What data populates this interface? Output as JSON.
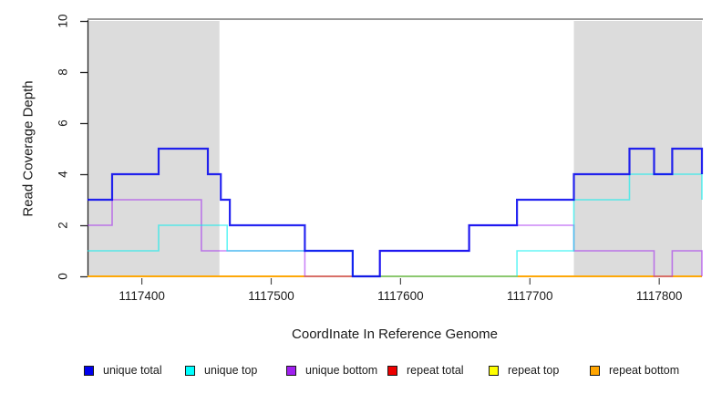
{
  "chart_data": {
    "type": "line",
    "subtype": "step",
    "title": "",
    "xlabel": "CoordInate In Reference Genome",
    "ylabel": "Read Coverage Depth",
    "xlim": [
      1117358,
      1117833
    ],
    "ylim": [
      0,
      10
    ],
    "x_ticks": [
      1117400,
      1117500,
      1117600,
      1117700,
      1117800
    ],
    "y_ticks": [
      0,
      2,
      4,
      6,
      8,
      10
    ],
    "grid": false,
    "legend_position": "bottom",
    "shade_color": "#dcdcdc",
    "shaded_regions": [
      {
        "x0": 1117358,
        "x1": 1117460
      },
      {
        "x0": 1117734,
        "x1": 1117833
      }
    ],
    "series": [
      {
        "name": "repeat total",
        "color": "#EE0000",
        "lwd": 1.6,
        "opacity": 1,
        "points": [
          [
            1117358,
            0
          ],
          [
            1117833,
            0
          ]
        ]
      },
      {
        "name": "repeat top",
        "color": "#FFFF00",
        "lwd": 1.6,
        "opacity": 1,
        "points": [
          [
            1117358,
            0
          ],
          [
            1117833,
            0
          ]
        ]
      },
      {
        "name": "repeat bottom",
        "color": "#FFA500",
        "lwd": 1.8,
        "opacity": 1,
        "points": [
          [
            1117358,
            0
          ],
          [
            1117833,
            0
          ]
        ]
      },
      {
        "name": "unique bottom",
        "color": "#A020F0",
        "lwd": 1.6,
        "opacity": 0.55,
        "points": [
          [
            1117358,
            2
          ],
          [
            1117377,
            3
          ],
          [
            1117446,
            1
          ],
          [
            1117526,
            0
          ],
          [
            1117584,
            1
          ],
          [
            1117653,
            2
          ],
          [
            1117734,
            1
          ],
          [
            1117796,
            0
          ],
          [
            1117810,
            1
          ],
          [
            1117833,
            0
          ]
        ]
      },
      {
        "name": "unique top",
        "color": "#00EEEE",
        "lwd": 1.6,
        "opacity": 0.6,
        "points": [
          [
            1117358,
            1
          ],
          [
            1117413,
            2
          ],
          [
            1117466,
            1
          ],
          [
            1117563,
            0
          ],
          [
            1117690,
            1
          ],
          [
            1117734,
            3
          ],
          [
            1117777,
            4
          ],
          [
            1117833,
            3
          ]
        ]
      },
      {
        "name": "unique total",
        "color": "#0000EE",
        "lwd": 2.2,
        "opacity": 0.85,
        "points": [
          [
            1117358,
            3
          ],
          [
            1117377,
            4
          ],
          [
            1117413,
            5
          ],
          [
            1117451,
            4
          ],
          [
            1117461,
            3
          ],
          [
            1117468,
            2
          ],
          [
            1117526,
            1
          ],
          [
            1117563,
            0
          ],
          [
            1117584,
            1
          ],
          [
            1117653,
            2
          ],
          [
            1117690,
            3
          ],
          [
            1117734,
            4
          ],
          [
            1117777,
            5
          ],
          [
            1117796,
            4
          ],
          [
            1117810,
            5
          ],
          [
            1117833,
            4
          ]
        ]
      }
    ]
  },
  "legend": {
    "items": [
      {
        "label": "unique total",
        "color": "#0000EE"
      },
      {
        "label": "unique top",
        "color": "#00FFFF"
      },
      {
        "label": "unique bottom",
        "color": "#A020F0"
      },
      {
        "label": "repeat total",
        "color": "#EE0000"
      },
      {
        "label": "repeat top",
        "color": "#FFFF00"
      },
      {
        "label": "repeat bottom",
        "color": "#FFA500"
      }
    ]
  }
}
